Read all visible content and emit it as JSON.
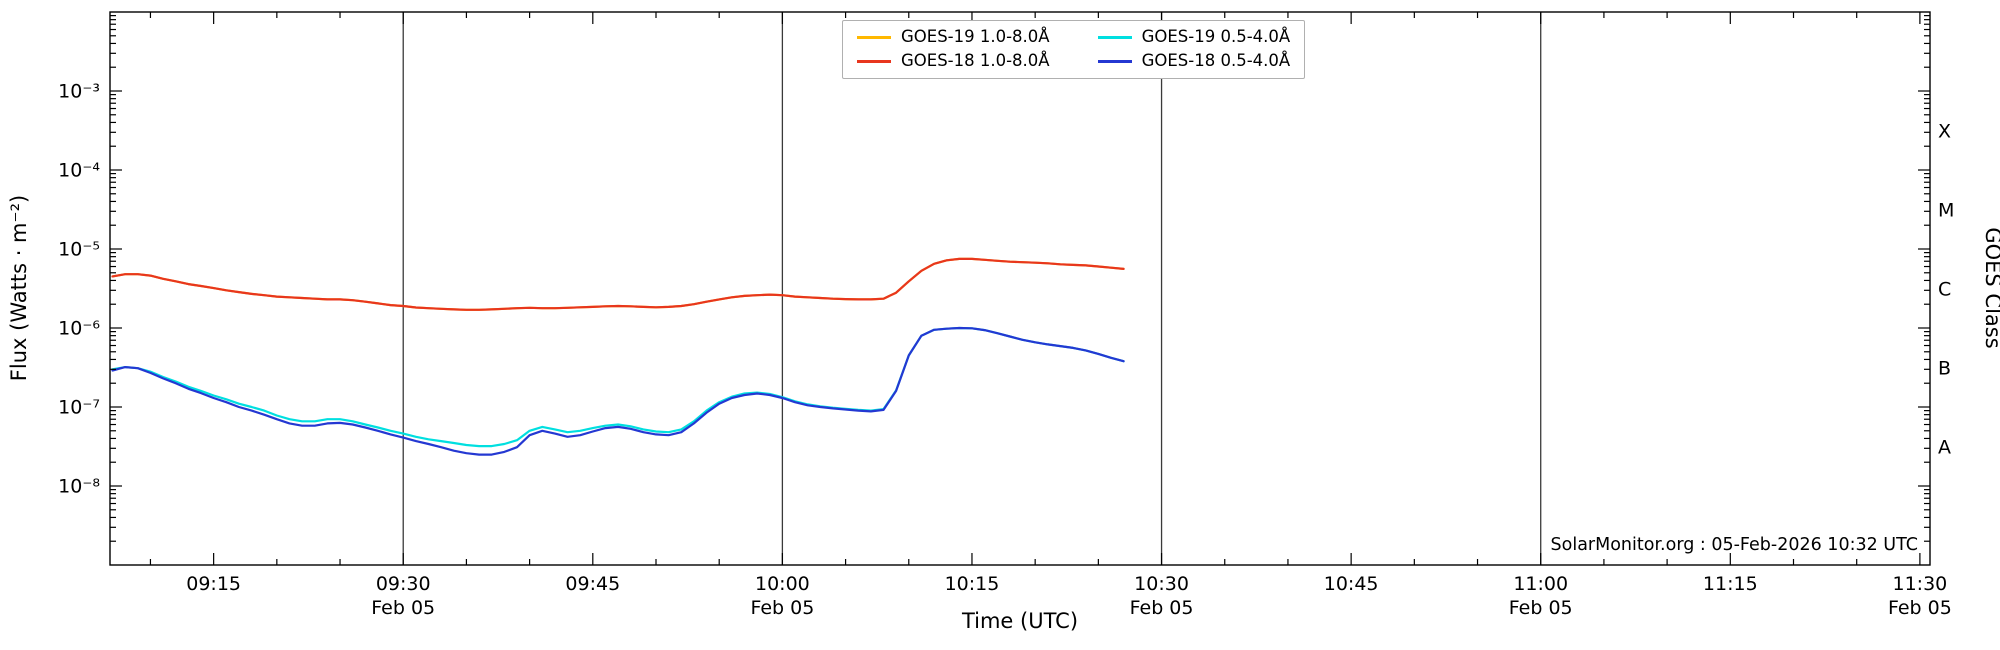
{
  "chart_data": {
    "type": "line",
    "xlabel": "Time (UTC)",
    "ylabel": "Flux (Watts · m⁻²)",
    "ylabel_right": "GOES Class",
    "annotation": "SolarMonitor.org : 05-Feb-2026 10:32 UTC",
    "x_axis": {
      "t_min_minutes": 6.8,
      "t_max_minutes": 150.8,
      "minor_tick_step_minutes": 5,
      "date_label": "Feb 05",
      "date_tick_minutes": [
        30,
        60,
        90,
        120,
        150
      ],
      "major_ticks": [
        {
          "minute": 15,
          "label": "09:15"
        },
        {
          "minute": 30,
          "label": "09:30"
        },
        {
          "minute": 45,
          "label": "09:45"
        },
        {
          "minute": 60,
          "label": "10:00"
        },
        {
          "minute": 75,
          "label": "10:15"
        },
        {
          "minute": 90,
          "label": "10:30"
        },
        {
          "minute": 105,
          "label": "10:45"
        },
        {
          "minute": 120,
          "label": "11:00"
        },
        {
          "minute": 135,
          "label": "11:15"
        },
        {
          "minute": 150,
          "label": "11:30"
        }
      ]
    },
    "y_axis": {
      "log_min_exp": -9,
      "log_max_exp": -2,
      "major_ticks": [
        {
          "exp": -3,
          "label": "10⁻³"
        },
        {
          "exp": -4,
          "label": "10⁻⁴"
        },
        {
          "exp": -5,
          "label": "10⁻⁵"
        },
        {
          "exp": -6,
          "label": "10⁻⁶"
        },
        {
          "exp": -7,
          "label": "10⁻⁷"
        },
        {
          "exp": -8,
          "label": "10⁻⁸"
        }
      ]
    },
    "goes_classes": [
      {
        "letter": "X",
        "flux": 0.000316
      },
      {
        "letter": "M",
        "flux": 3.16e-05
      },
      {
        "letter": "C",
        "flux": 3.16e-06
      },
      {
        "letter": "B",
        "flux": 3.16e-07
      },
      {
        "letter": "A",
        "flux": 3.16e-08
      }
    ],
    "gridline_minutes": [
      30,
      60,
      90,
      120
    ],
    "legend_order": [
      0,
      2,
      1,
      3
    ],
    "series": [
      {
        "id": "goes19-long",
        "name": "GOES-19 1.0-8.0Å",
        "color": "#ffb800",
        "t_start": 7,
        "t_step": 1,
        "values": [
          4.5e-06,
          4.8e-06,
          4.8e-06,
          4.6e-06,
          4.2e-06,
          3.9e-06,
          3.6e-06,
          3.4e-06,
          3.2e-06,
          3e-06,
          2.85e-06,
          2.7e-06,
          2.6e-06,
          2.5e-06,
          2.45e-06,
          2.4e-06,
          2.35e-06,
          2.3e-06,
          2.3e-06,
          2.25e-06,
          2.15e-06,
          2.05e-06,
          1.95e-06,
          1.9e-06,
          1.82e-06,
          1.78e-06,
          1.75e-06,
          1.72e-06,
          1.7e-06,
          1.7e-06,
          1.72e-06,
          1.75e-06,
          1.78e-06,
          1.8e-06,
          1.78e-06,
          1.78e-06,
          1.8e-06,
          1.83e-06,
          1.85e-06,
          1.88e-06,
          1.9e-06,
          1.88e-06,
          1.85e-06,
          1.83e-06,
          1.85e-06,
          1.9e-06,
          2e-06,
          2.15e-06,
          2.3e-06,
          2.45e-06,
          2.55e-06,
          2.6e-06,
          2.65e-06,
          2.6e-06,
          2.5e-06,
          2.45e-06,
          2.4e-06,
          2.35e-06,
          2.32e-06,
          2.3e-06,
          2.3e-06,
          2.35e-06,
          2.8e-06,
          3.9e-06,
          5.3e-06,
          6.5e-06,
          7.2e-06,
          7.5e-06,
          7.5e-06,
          7.3e-06,
          7.1e-06,
          6.9e-06,
          6.8e-06,
          6.7e-06,
          6.6e-06,
          6.4e-06,
          6.3e-06,
          6.2e-06,
          6e-06,
          5.8e-06,
          5.6e-06
        ]
      },
      {
        "id": "goes18-long",
        "name": "GOES-18 1.0-8.0Å",
        "color": "#e8361e",
        "t_start": 7,
        "t_step": 1,
        "values": [
          4.5e-06,
          4.8e-06,
          4.8e-06,
          4.6e-06,
          4.2e-06,
          3.9e-06,
          3.6e-06,
          3.4e-06,
          3.2e-06,
          3e-06,
          2.85e-06,
          2.7e-06,
          2.6e-06,
          2.5e-06,
          2.45e-06,
          2.4e-06,
          2.35e-06,
          2.3e-06,
          2.3e-06,
          2.25e-06,
          2.15e-06,
          2.05e-06,
          1.95e-06,
          1.9e-06,
          1.82e-06,
          1.78e-06,
          1.75e-06,
          1.72e-06,
          1.7e-06,
          1.7e-06,
          1.72e-06,
          1.75e-06,
          1.78e-06,
          1.8e-06,
          1.78e-06,
          1.78e-06,
          1.8e-06,
          1.83e-06,
          1.85e-06,
          1.88e-06,
          1.9e-06,
          1.88e-06,
          1.85e-06,
          1.83e-06,
          1.85e-06,
          1.9e-06,
          2e-06,
          2.15e-06,
          2.3e-06,
          2.45e-06,
          2.55e-06,
          2.6e-06,
          2.65e-06,
          2.6e-06,
          2.5e-06,
          2.45e-06,
          2.4e-06,
          2.35e-06,
          2.32e-06,
          2.3e-06,
          2.3e-06,
          2.35e-06,
          2.8e-06,
          3.9e-06,
          5.3e-06,
          6.5e-06,
          7.2e-06,
          7.5e-06,
          7.5e-06,
          7.3e-06,
          7.1e-06,
          6.9e-06,
          6.8e-06,
          6.7e-06,
          6.6e-06,
          6.4e-06,
          6.3e-06,
          6.2e-06,
          6e-06,
          5.8e-06,
          5.6e-06
        ]
      },
      {
        "id": "goes19-short",
        "name": "GOES-19 0.5-4.0Å",
        "color": "#00dfe0",
        "t_start": 7,
        "t_step": 1,
        "values": [
          3e-07,
          3.2e-07,
          3.1e-07,
          2.8e-07,
          2.4e-07,
          2.1e-07,
          1.8e-07,
          1.6e-07,
          1.4e-07,
          1.25e-07,
          1.1e-07,
          1e-07,
          9e-08,
          7.8e-08,
          7e-08,
          6.6e-08,
          6.6e-08,
          7e-08,
          7e-08,
          6.6e-08,
          6e-08,
          5.5e-08,
          5e-08,
          4.6e-08,
          4.2e-08,
          3.9e-08,
          3.7e-08,
          3.5e-08,
          3.3e-08,
          3.2e-08,
          3.2e-08,
          3.4e-08,
          3.8e-08,
          5e-08,
          5.6e-08,
          5.2e-08,
          4.8e-08,
          5e-08,
          5.4e-08,
          5.8e-08,
          6e-08,
          5.7e-08,
          5.2e-08,
          4.9e-08,
          4.8e-08,
          5.2e-08,
          6.6e-08,
          9e-08,
          1.15e-07,
          1.35e-07,
          1.48e-07,
          1.52e-07,
          1.46e-07,
          1.33e-07,
          1.18e-07,
          1.08e-07,
          1.02e-07,
          9.8e-08,
          9.5e-08,
          9.2e-08,
          9e-08,
          9.4e-08,
          1.62e-07,
          4.5e-07,
          8e-07,
          9.5e-07,
          9.8e-07,
          1e-06,
          9.9e-07,
          9.4e-07,
          8.6e-07,
          7.8e-07,
          7.1e-07,
          6.6e-07,
          6.2e-07,
          5.9e-07,
          5.6e-07,
          5.2e-07,
          4.7e-07,
          4.2e-07,
          3.8e-07
        ]
      },
      {
        "id": "goes18-short",
        "name": "GOES-18 0.5-4.0Å",
        "color": "#2438d2",
        "t_start": 7,
        "t_step": 1,
        "values": [
          2.9e-07,
          3.2e-07,
          3.1e-07,
          2.7e-07,
          2.3e-07,
          2e-07,
          1.7e-07,
          1.5e-07,
          1.3e-07,
          1.15e-07,
          1e-07,
          9e-08,
          8e-08,
          7e-08,
          6.2e-08,
          5.8e-08,
          5.8e-08,
          6.2e-08,
          6.3e-08,
          6e-08,
          5.5e-08,
          5e-08,
          4.5e-08,
          4.1e-08,
          3.7e-08,
          3.4e-08,
          3.1e-08,
          2.8e-08,
          2.6e-08,
          2.5e-08,
          2.5e-08,
          2.7e-08,
          3.1e-08,
          4.4e-08,
          5e-08,
          4.6e-08,
          4.2e-08,
          4.4e-08,
          4.9e-08,
          5.4e-08,
          5.6e-08,
          5.3e-08,
          4.8e-08,
          4.5e-08,
          4.4e-08,
          4.8e-08,
          6.2e-08,
          8.5e-08,
          1.1e-07,
          1.3e-07,
          1.42e-07,
          1.48e-07,
          1.42e-07,
          1.3e-07,
          1.15e-07,
          1.05e-07,
          1e-07,
          9.6e-08,
          9.3e-08,
          9e-08,
          8.8e-08,
          9.2e-08,
          1.6e-07,
          4.5e-07,
          8e-07,
          9.5e-07,
          9.8e-07,
          1e-06,
          9.9e-07,
          9.4e-07,
          8.6e-07,
          7.8e-07,
          7.1e-07,
          6.6e-07,
          6.2e-07,
          5.9e-07,
          5.6e-07,
          5.2e-07,
          4.7e-07,
          4.2e-07,
          3.8e-07
        ]
      }
    ]
  },
  "colors": {
    "axis": "#000000",
    "grid": "#3a3a3a",
    "background": "#ffffff"
  }
}
